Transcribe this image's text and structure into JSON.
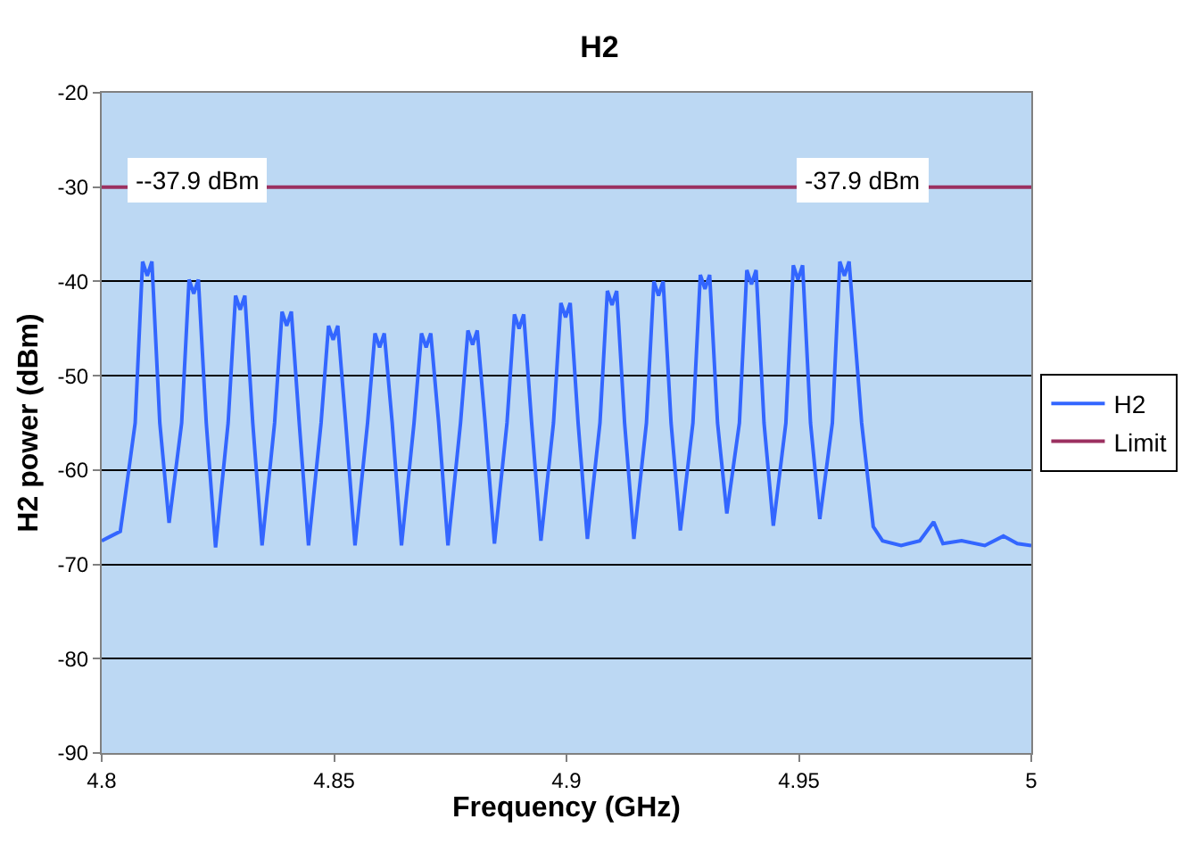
{
  "chart_data": {
    "type": "line",
    "title": "H2",
    "xlabel": "Frequency (GHz)",
    "ylabel": "H2 power (dBm)",
    "xlim": [
      4.8,
      5
    ],
    "xticks": [
      4.8,
      4.85,
      4.9,
      4.95,
      5
    ],
    "ylim": [
      -90,
      -20
    ],
    "yticks": [
      -90,
      -80,
      -70,
      -60,
      -50,
      -40,
      -30,
      -20
    ],
    "grid": "y",
    "legend": "right",
    "marker": "none",
    "line_style": "solid",
    "series": [
      {
        "name": "H2",
        "color": "#3366ff",
        "x": [
          4.8,
          4.802,
          4.804,
          4.805,
          4.8072,
          4.8088,
          4.8098,
          4.8108,
          4.8125,
          4.8145,
          4.8172,
          4.8188,
          4.8198,
          4.8208,
          4.8225,
          4.8245,
          4.8272,
          4.8288,
          4.8298,
          4.8308,
          4.8325,
          4.8345,
          4.8372,
          4.8388,
          4.8398,
          4.8408,
          4.8425,
          4.8445,
          4.8472,
          4.8488,
          4.8498,
          4.8508,
          4.8525,
          4.8545,
          4.8572,
          4.8588,
          4.8598,
          4.8608,
          4.8625,
          4.8645,
          4.8672,
          4.8688,
          4.8698,
          4.8708,
          4.8725,
          4.8745,
          4.8772,
          4.8788,
          4.8798,
          4.8808,
          4.8825,
          4.8845,
          4.8872,
          4.8888,
          4.8898,
          4.8908,
          4.8925,
          4.8945,
          4.8972,
          4.8988,
          4.8998,
          4.9008,
          4.9025,
          4.9045,
          4.9072,
          4.9088,
          4.9098,
          4.9108,
          4.9125,
          4.9145,
          4.9172,
          4.9188,
          4.9198,
          4.9208,
          4.9225,
          4.9245,
          4.9272,
          4.9288,
          4.9298,
          4.9308,
          4.9325,
          4.9345,
          4.9372,
          4.9388,
          4.9398,
          4.9408,
          4.9425,
          4.9445,
          4.9472,
          4.9488,
          4.9498,
          4.9508,
          4.9525,
          4.9545,
          4.9572,
          4.9588,
          4.9598,
          4.9608,
          4.9635,
          4.966,
          4.968,
          4.972,
          4.976,
          4.979,
          4.981,
          4.985,
          4.99,
          4.994,
          4.997,
          5.0
        ],
        "values": [
          -67.5,
          -67,
          -66.5,
          -63,
          -55,
          -37.9,
          -39.4,
          -37.9,
          -55,
          -65.6,
          -55,
          -39.8,
          -41.3,
          -39.8,
          -55,
          -68.2,
          -55,
          -41.5,
          -43,
          -41.5,
          -55,
          -68,
          -55,
          -43.2,
          -44.7,
          -43.2,
          -55,
          -68,
          -55,
          -44.7,
          -46.2,
          -44.7,
          -55,
          -68,
          -55,
          -45.5,
          -47,
          -45.5,
          -55,
          -68,
          -55,
          -45.5,
          -47,
          -45.5,
          -55,
          -68,
          -55,
          -45.2,
          -46.7,
          -45.2,
          -55,
          -67.8,
          -55,
          -43.5,
          -45,
          -43.5,
          -55,
          -67.5,
          -55,
          -42.3,
          -43.8,
          -42.3,
          -55,
          -67.3,
          -55,
          -41,
          -42.5,
          -41,
          -55,
          -67.3,
          -55,
          -40,
          -41.5,
          -40,
          -55,
          -66.4,
          -55,
          -39.3,
          -40.8,
          -39.3,
          -55,
          -64.6,
          -55,
          -38.8,
          -40.3,
          -38.8,
          -55,
          -65.9,
          -55,
          -38.3,
          -39.8,
          -38.3,
          -55,
          -65.2,
          -55,
          -37.9,
          -39.4,
          -37.9,
          -55,
          -66,
          -67.5,
          -68,
          -67.5,
          -65.5,
          -67.8,
          -67.5,
          -68,
          -67,
          -67.8,
          -68
        ]
      },
      {
        "name": "Limit",
        "color": "#9b3060",
        "x": [
          4.8,
          5
        ],
        "values": [
          -30,
          -30
        ]
      }
    ],
    "annotations": [
      {
        "text": "--37.9 dBm",
        "x": 4.81,
        "y": -37.9
      },
      {
        "text": "-37.9 dBm",
        "x": 4.96,
        "y": -37.9
      }
    ]
  }
}
